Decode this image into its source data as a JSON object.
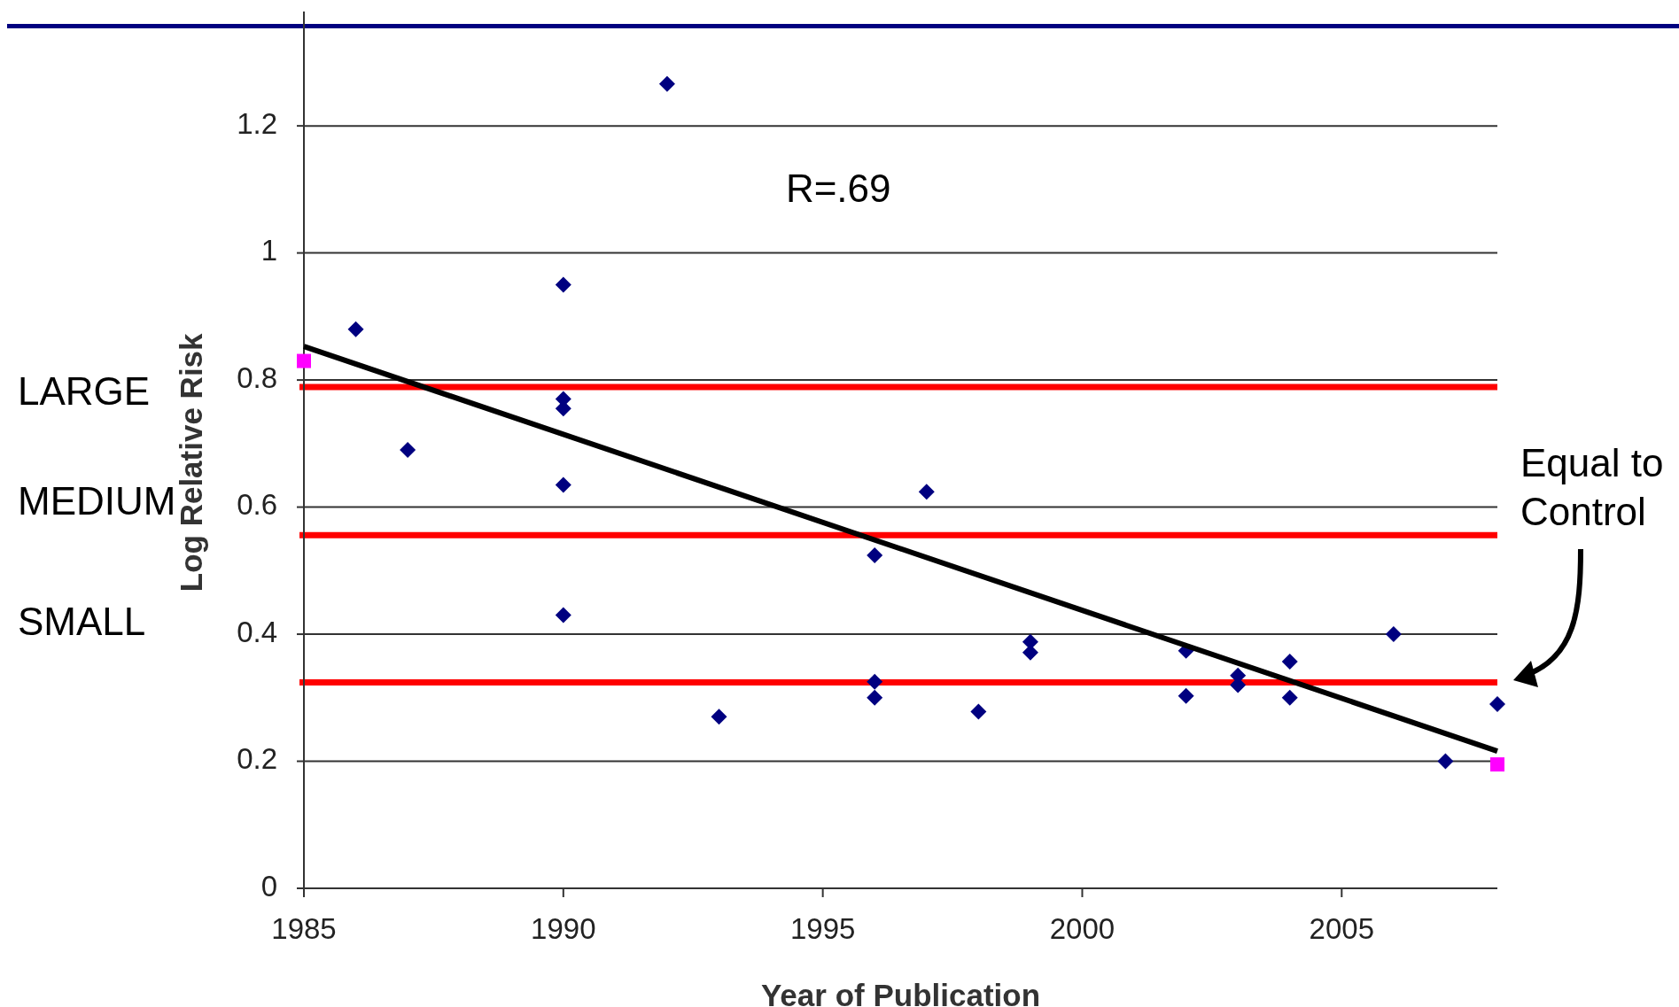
{
  "chart_data": {
    "type": "scatter",
    "xlabel": "Year of Publication",
    "ylabel": "Log Relative Risk",
    "xlim": [
      1985,
      2008
    ],
    "xticks": [
      1985,
      1990,
      1995,
      2000,
      2005
    ],
    "ylim": [
      0,
      1.38
    ],
    "yticks": [
      0,
      0.2,
      0.4,
      0.6,
      0.8,
      1,
      1.2
    ],
    "grid": "y",
    "series": [
      {
        "color": "#000080",
        "marker": "diamond",
        "x": [
          1986,
          1987,
          1990,
          1990,
          1990,
          1990,
          1990,
          1992,
          1993,
          1996,
          1996,
          1996,
          1997,
          1998,
          1999,
          1999,
          2002,
          2002,
          2003,
          2003,
          2004,
          2004,
          2006,
          2007,
          2008
        ],
        "values": [
          0.88,
          0.69,
          0.95,
          0.77,
          0.755,
          0.635,
          0.43,
          1.266,
          0.27,
          0.524,
          0.325,
          0.3,
          0.624,
          0.278,
          0.388,
          0.371,
          0.374,
          0.303,
          0.335,
          0.32,
          0.357,
          0.3,
          0.4,
          0.2,
          0.29
        ]
      },
      {
        "color": "#ff00ff",
        "marker": "square",
        "x": [
          1985,
          2008
        ],
        "values": [
          0.83,
          0.195
        ]
      },
      {
        "type": "line",
        "color": "#000000",
        "x": [
          1985,
          2008
        ],
        "values": [
          0.853,
          0.216
        ]
      }
    ],
    "ref_lines": [
      {
        "axis": "y",
        "value": 0.789,
        "color": "#ff0000"
      },
      {
        "axis": "y",
        "value": 0.556,
        "color": "#ff0000"
      },
      {
        "axis": "y",
        "value": 0.324,
        "color": "#ff0000"
      }
    ],
    "annotations": [
      "R=.69",
      "Equal to\nControl",
      "LARGE",
      "MEDIUM",
      "SMALL"
    ]
  }
}
